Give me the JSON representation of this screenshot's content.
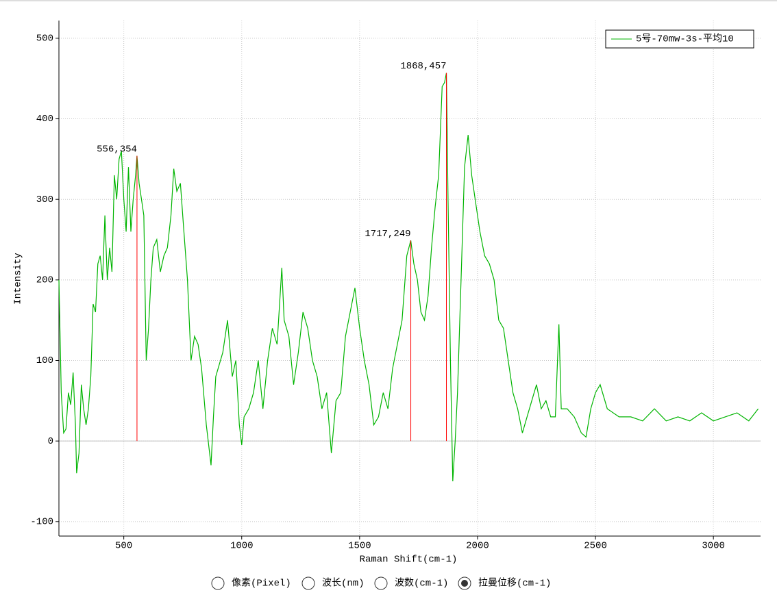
{
  "chart_data": {
    "type": "line",
    "xlabel": "Raman Shift(cm-1)",
    "ylabel": "Intensity",
    "x": [
      225,
      235,
      245,
      255,
      265,
      275,
      285,
      295,
      300,
      310,
      320,
      330,
      340,
      350,
      360,
      370,
      380,
      390,
      400,
      410,
      420,
      430,
      440,
      450,
      460,
      470,
      480,
      490,
      500,
      510,
      520,
      530,
      540,
      550,
      556,
      565,
      575,
      585,
      595,
      605,
      615,
      625,
      640,
      655,
      670,
      685,
      700,
      712,
      725,
      740,
      755,
      770,
      785,
      800,
      815,
      830,
      850,
      870,
      880,
      890,
      900,
      920,
      940,
      960,
      975,
      990,
      1000,
      1010,
      1030,
      1050,
      1070,
      1090,
      1110,
      1130,
      1150,
      1170,
      1180,
      1200,
      1220,
      1240,
      1260,
      1280,
      1300,
      1320,
      1340,
      1360,
      1380,
      1400,
      1420,
      1440,
      1460,
      1480,
      1500,
      1520,
      1540,
      1560,
      1580,
      1600,
      1620,
      1640,
      1660,
      1680,
      1700,
      1717,
      1730,
      1745,
      1760,
      1775,
      1790,
      1805,
      1820,
      1835,
      1850,
      1860,
      1868,
      1875,
      1885,
      1895,
      1905,
      1915,
      1930,
      1945,
      1960,
      1975,
      1990,
      2010,
      2030,
      2050,
      2070,
      2090,
      2110,
      2130,
      2150,
      2170,
      2190,
      2210,
      2230,
      2250,
      2270,
      2290,
      2310,
      2330,
      2345,
      2355,
      2380,
      2410,
      2440,
      2460,
      2480,
      2500,
      2520,
      2550,
      2600,
      2650,
      2700,
      2750,
      2800,
      2850,
      2900,
      2950,
      3000,
      3050,
      3100,
      3150,
      3190
    ],
    "series": [
      {
        "name": "5号-70mw-3s-平均10",
        "color": "#00b400",
        "values": [
          200,
          60,
          10,
          15,
          60,
          45,
          85,
          20,
          -40,
          -15,
          70,
          40,
          20,
          40,
          80,
          170,
          160,
          220,
          230,
          200,
          280,
          200,
          240,
          210,
          330,
          300,
          350,
          360,
          300,
          260,
          340,
          260,
          300,
          330,
          354,
          320,
          300,
          280,
          100,
          140,
          200,
          240,
          250,
          210,
          230,
          240,
          280,
          338,
          310,
          320,
          260,
          200,
          100,
          130,
          120,
          90,
          20,
          -30,
          30,
          80,
          90,
          110,
          150,
          80,
          100,
          20,
          -5,
          30,
          40,
          60,
          100,
          40,
          100,
          140,
          120,
          215,
          150,
          130,
          70,
          110,
          160,
          140,
          100,
          80,
          40,
          60,
          -15,
          50,
          60,
          130,
          160,
          190,
          140,
          100,
          70,
          20,
          30,
          60,
          40,
          90,
          120,
          150,
          230,
          249,
          220,
          200,
          160,
          150,
          180,
          240,
          290,
          330,
          440,
          445,
          457,
          300,
          100,
          -50,
          0,
          60,
          200,
          340,
          380,
          330,
          300,
          260,
          230,
          220,
          200,
          150,
          140,
          100,
          60,
          40,
          10,
          30,
          50,
          70,
          40,
          50,
          30,
          30,
          145,
          40,
          40,
          30,
          10,
          5,
          40,
          60,
          70,
          40,
          30,
          30,
          25,
          40,
          25,
          30,
          25,
          35,
          25,
          30,
          35,
          25,
          40
        ]
      }
    ],
    "annotations": [
      {
        "x": 556,
        "y": 354,
        "label": "556,354"
      },
      {
        "x": 1717,
        "y": 249,
        "label": "1717,249"
      },
      {
        "x": 1868,
        "y": 457,
        "label": "1868,457"
      }
    ],
    "annotation_color": "#ff0000",
    "xlim": [
      225,
      3200
    ],
    "ylim": [
      -118,
      522
    ],
    "xticks": [
      500,
      1000,
      1500,
      2000,
      2500,
      3000
    ],
    "yticks": [
      -100,
      0,
      100,
      200,
      300,
      400,
      500
    ],
    "grid": true,
    "legend": "upper right"
  },
  "radio_options": [
    {
      "label": "像素(Pixel)",
      "checked": false
    },
    {
      "label": "波长(nm)",
      "checked": false
    },
    {
      "label": "波数(cm-1)",
      "checked": false
    },
    {
      "label": "拉曼位移(cm-1)",
      "checked": true
    }
  ]
}
